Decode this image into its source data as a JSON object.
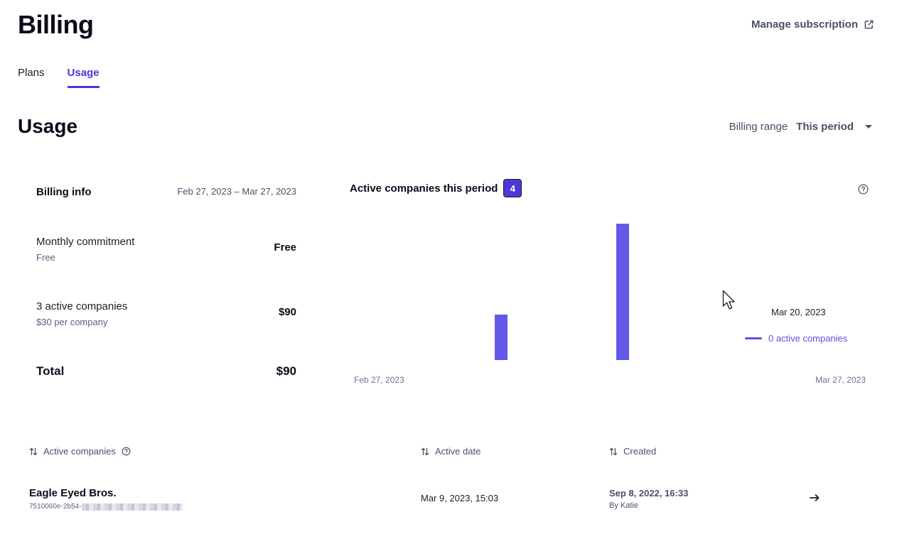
{
  "header": {
    "title": "Billing",
    "manage_label": "Manage subscription",
    "manage_icon": "external-link-icon"
  },
  "tabs": [
    {
      "label": "Plans",
      "active": false
    },
    {
      "label": "Usage",
      "active": true
    }
  ],
  "usage": {
    "title": "Usage",
    "billing_range_label": "Billing range",
    "billing_range_value": "This period"
  },
  "billing_info": {
    "heading": "Billing info",
    "dates": "Feb 27, 2023 – Mar 27, 2023",
    "rows": [
      {
        "label": "Monthly commitment",
        "sub": "Free",
        "value": "Free"
      },
      {
        "label": "3 active companies",
        "sub": "$30 per company",
        "value": "$90"
      }
    ],
    "total_label": "Total",
    "total_value": "$90"
  },
  "chart": {
    "title": "Active companies this period",
    "count": "4",
    "x_start_label": "Feb 27, 2023",
    "x_end_label": "Mar 27, 2023",
    "tooltip_date": "Mar 20, 2023",
    "tooltip_value": "0 active companies",
    "bar_color": "#6359e9"
  },
  "chart_data": {
    "type": "bar",
    "x": [
      "Mar 6, 2023",
      "Mar 13, 2023"
    ],
    "values": [
      1,
      3
    ],
    "xlim": [
      "Feb 27, 2023",
      "Mar 27, 2023"
    ],
    "ylim": [
      0,
      3
    ],
    "grid": false
  },
  "table": {
    "columns": [
      {
        "label": "Active companies",
        "help": true
      },
      {
        "label": "Active date",
        "help": false
      },
      {
        "label": "Created",
        "help": false
      }
    ],
    "rows": [
      {
        "name": "Eagle Eyed Bros.",
        "id_prefix": "7510060e-2b54-",
        "active_date": "Mar 9, 2023, 15:03",
        "created": "Sep 8, 2022, 16:33",
        "created_by": "By Katie"
      }
    ]
  },
  "colors": {
    "accent": "#4b38d6",
    "text_muted": "#4a5068"
  }
}
